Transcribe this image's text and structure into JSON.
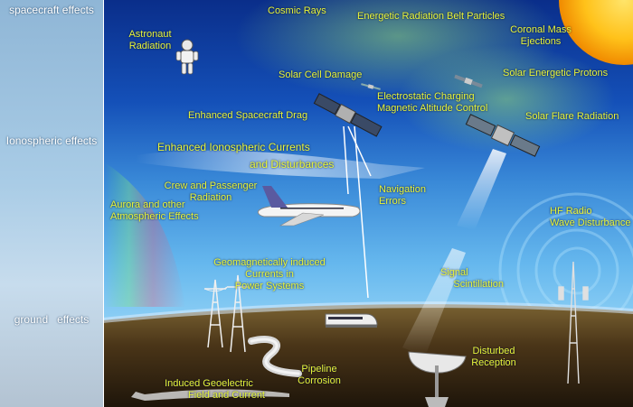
{
  "regions": {
    "spacecraft": "spacecraft effects",
    "ionospheric": "Ionospheric effects",
    "ground": "ground   effects"
  },
  "labels": {
    "cosmic_rays": "Cosmic Rays",
    "belt_particles": "Energetic Radiation Belt Particles",
    "cme_1": "Coronal Mass",
    "cme_2": "Ejections",
    "astronaut_1": "Astronaut",
    "astronaut_2": "Radiation",
    "solar_cell": "Solar Cell Damage",
    "protons": "Solar Energetic Protons",
    "charging_1": "Electrostatic Charging",
    "charging_2": "Magnetic Altitude Control",
    "drag": "Enhanced Spacecraft Drag",
    "flare": "Solar Flare Radiation",
    "iono_1": "Enhanced Ionospheric Currents",
    "iono_2": "and Disturbances",
    "crew_1": "Crew and Passenger",
    "crew_2": "Radiation",
    "nav_1": "Navigation",
    "nav_2": "Errors",
    "aurora_1": "Aurora and other",
    "aurora_2": "Atmospheric Effects",
    "hf_1": "HF Radio",
    "hf_2": "Wave Disturbance",
    "gic_1": "Geomagnetically induced",
    "gic_2": "Currents in",
    "gic_3": "Power Systems",
    "signal_1": "Signal",
    "signal_2": "Scintillation",
    "reception_1": "Disturbed",
    "reception_2": "Reception",
    "pipeline_1": "Pipeline",
    "pipeline_2": "Corrosion",
    "geoelectric_1": "Induced Geoelectric",
    "geoelectric_2": "Field and Current"
  },
  "colors": {
    "label": "#e8f53a",
    "space": "#0a3a9a",
    "sky": "#5aa6e0",
    "ground": "#5a4320",
    "sun": "#ffc21a"
  },
  "icons": [
    "sun-icon",
    "astronaut-icon",
    "satellite-icon",
    "airplane-icon",
    "train-icon",
    "power-tower-icon",
    "radio-tower-icon",
    "satellite-dish-icon",
    "pipeline-icon"
  ]
}
